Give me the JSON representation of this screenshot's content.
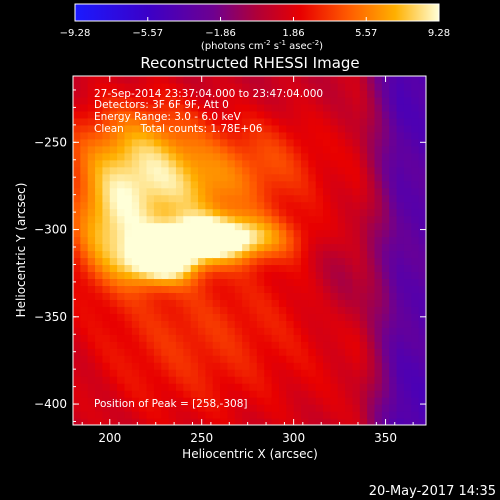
{
  "chart_data": {
    "type": "heatmap",
    "title": "Reconstructed RHESSI Image",
    "xlabel": "Heliocentric X (arcsec)",
    "ylabel": "Heliocentric Y (arcsec)",
    "xlim": [
      180,
      372
    ],
    "ylim": [
      -412,
      -212
    ],
    "x_ticks": [
      "200",
      "250",
      "300",
      "350"
    ],
    "x_tick_values": [
      200,
      250,
      300,
      350
    ],
    "y_ticks": [
      "-250",
      "-300",
      "-350",
      "-400"
    ],
    "y_tick_values": [
      -250,
      -300,
      -350,
      -400
    ],
    "colorbar": {
      "min": -9.28,
      "max": 9.28,
      "ticks": [
        "-9.28",
        "-5.57",
        "-1.86",
        "1.86",
        "5.57",
        "9.28"
      ],
      "tick_values": [
        -9.28,
        -5.57,
        -1.86,
        1.86,
        5.57,
        9.28
      ],
      "label_prefix": "(photons cm",
      "label_sup1": "-2",
      "label_mid": " s",
      "label_sup2": "-1",
      "label_mid2": " asec",
      "label_sup3": "-2",
      "label_suffix": ")"
    },
    "annotations": [
      "27-Sep-2014 23:37:04.000 to 23:47:04.000",
      "Detectors: 3F 6F 9F, Att 0",
      "Energy Range: 3.0 - 6.0 keV",
      "Clean     Total counts: 1.78E+06"
    ],
    "peak_label": "Position of Peak = [258,-308]",
    "peak": [
      258,
      -308
    ],
    "sources": [
      {
        "x": 258,
        "y": -305,
        "sx": 24,
        "sy": 9,
        "amp": 9.28
      },
      {
        "x": 228,
        "y": -318,
        "sx": 14,
        "sy": 9,
        "amp": 8.3
      },
      {
        "x": 200,
        "y": -300,
        "sx": 16,
        "sy": 22,
        "amp": 5.5
      },
      {
        "x": 215,
        "y": -255,
        "sx": 28,
        "sy": 22,
        "amp": 5.8
      },
      {
        "x": 240,
        "y": -280,
        "sx": 26,
        "sy": 18,
        "amp": 4.2
      },
      {
        "x": 285,
        "y": -260,
        "sx": 22,
        "sy": 20,
        "amp": 2.6
      },
      {
        "x": 245,
        "y": -360,
        "sx": 45,
        "sy": 40,
        "amp": 2.8
      },
      {
        "x": 330,
        "y": -320,
        "sx": 28,
        "sy": 55,
        "amp": 1.4
      }
    ],
    "background_level": 0.6
  },
  "timestamp": "20-May-2017 14:35"
}
